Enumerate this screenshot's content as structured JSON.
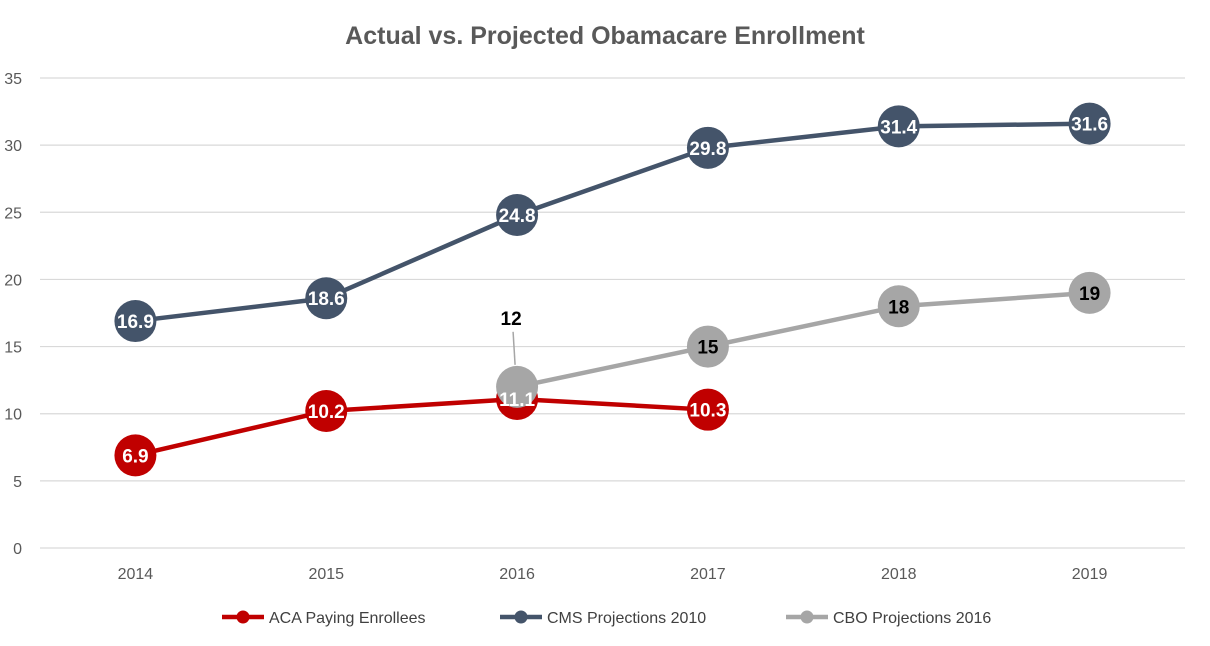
{
  "chart_data": {
    "type": "line",
    "title": "Actual vs. Projected Obamacare Enrollment",
    "xlabel": "",
    "ylabel": "",
    "categories": [
      "2014",
      "2015",
      "2016",
      "2017",
      "2018",
      "2019"
    ],
    "ylim": [
      0,
      35
    ],
    "yticks": [
      "0",
      "5",
      "10",
      "15",
      "20",
      "25",
      "30",
      "35"
    ],
    "grid": true,
    "legend_position": "bottom",
    "series": [
      {
        "name": "ACA Paying Enrollees",
        "color": "#C00000",
        "label_color": "#FFFFFF",
        "values": [
          6.9,
          10.2,
          11.1,
          10.3,
          null,
          null
        ],
        "labels": [
          "6.9",
          "10.2",
          "11.1",
          "10.3",
          "",
          ""
        ]
      },
      {
        "name": "CMS Projections 2010",
        "color": "#44546A",
        "label_color": "#FFFFFF",
        "values": [
          16.9,
          18.6,
          24.8,
          29.8,
          31.4,
          31.6
        ],
        "labels": [
          "16.9",
          "18.6",
          "24.8",
          "29.8",
          "31.4",
          "31.6"
        ]
      },
      {
        "name": "CBO Projections 2016",
        "color": "#A6A6A6",
        "label_color": "#000000",
        "values": [
          null,
          null,
          12,
          15,
          18,
          19
        ],
        "labels": [
          "",
          "",
          "12",
          "15",
          "18",
          "19"
        ]
      }
    ]
  }
}
